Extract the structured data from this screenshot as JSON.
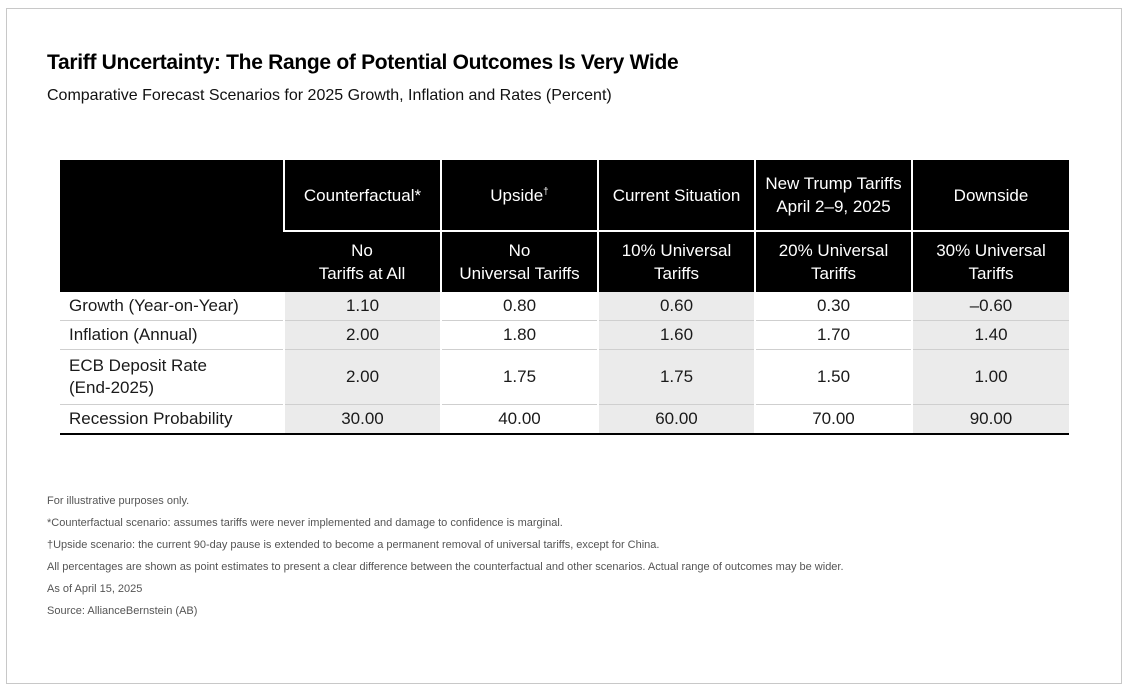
{
  "title": "Tariff Uncertainty: The Range of Potential Outcomes Is Very Wide",
  "subtitle": "Comparative Forecast Scenarios for 2025 Growth, Inflation and Rates (Percent)",
  "chart_data": {
    "type": "table",
    "columns": [
      {
        "name": "Counterfactual*",
        "mark": "",
        "tariff_line1": "No",
        "tariff_line2": "Tariffs at All"
      },
      {
        "name": "Upside",
        "mark": "†",
        "tariff_line1": "No",
        "tariff_line2": "Universal Tariffs"
      },
      {
        "name": "Current Situation",
        "mark": "",
        "tariff_line1": "10% Universal",
        "tariff_line2": "Tariffs"
      },
      {
        "name": "New Trump Tariffs",
        "name_line2": "April 2–9, 2025",
        "mark": "",
        "tariff_line1": "20% Universal",
        "tariff_line2": "Tariffs"
      },
      {
        "name": "Downside",
        "mark": "",
        "tariff_line1": "30% Universal",
        "tariff_line2": "Tariffs"
      }
    ],
    "rows": [
      {
        "label": "Growth (Year-on-Year)",
        "values": [
          "1.10",
          "0.80",
          "0.60",
          "0.30",
          "–0.60"
        ]
      },
      {
        "label": "Inflation (Annual)",
        "values": [
          "2.00",
          "1.80",
          "1.60",
          "1.70",
          "1.40"
        ]
      },
      {
        "label": "ECB Deposit Rate",
        "label_line2": "(End-2025)",
        "values": [
          "2.00",
          "1.75",
          "1.75",
          "1.50",
          "1.00"
        ]
      },
      {
        "label": "Recession Probability",
        "values": [
          "30.00",
          "40.00",
          "60.00",
          "70.00",
          "90.00"
        ]
      }
    ]
  },
  "notes": [
    "For illustrative purposes only.",
    "*Counterfactual scenario: assumes tariffs were never implemented and damage to confidence is marginal.",
    "†Upside scenario: the current 90-day pause is extended to become a permanent removal of universal tariffs, except for China.",
    "All percentages are shown as point estimates to present a clear difference between the counterfactual and other scenarios. Actual range of outcomes may be wider.",
    "As of April 15, 2025",
    "Source: AllianceBernstein (AB)"
  ]
}
